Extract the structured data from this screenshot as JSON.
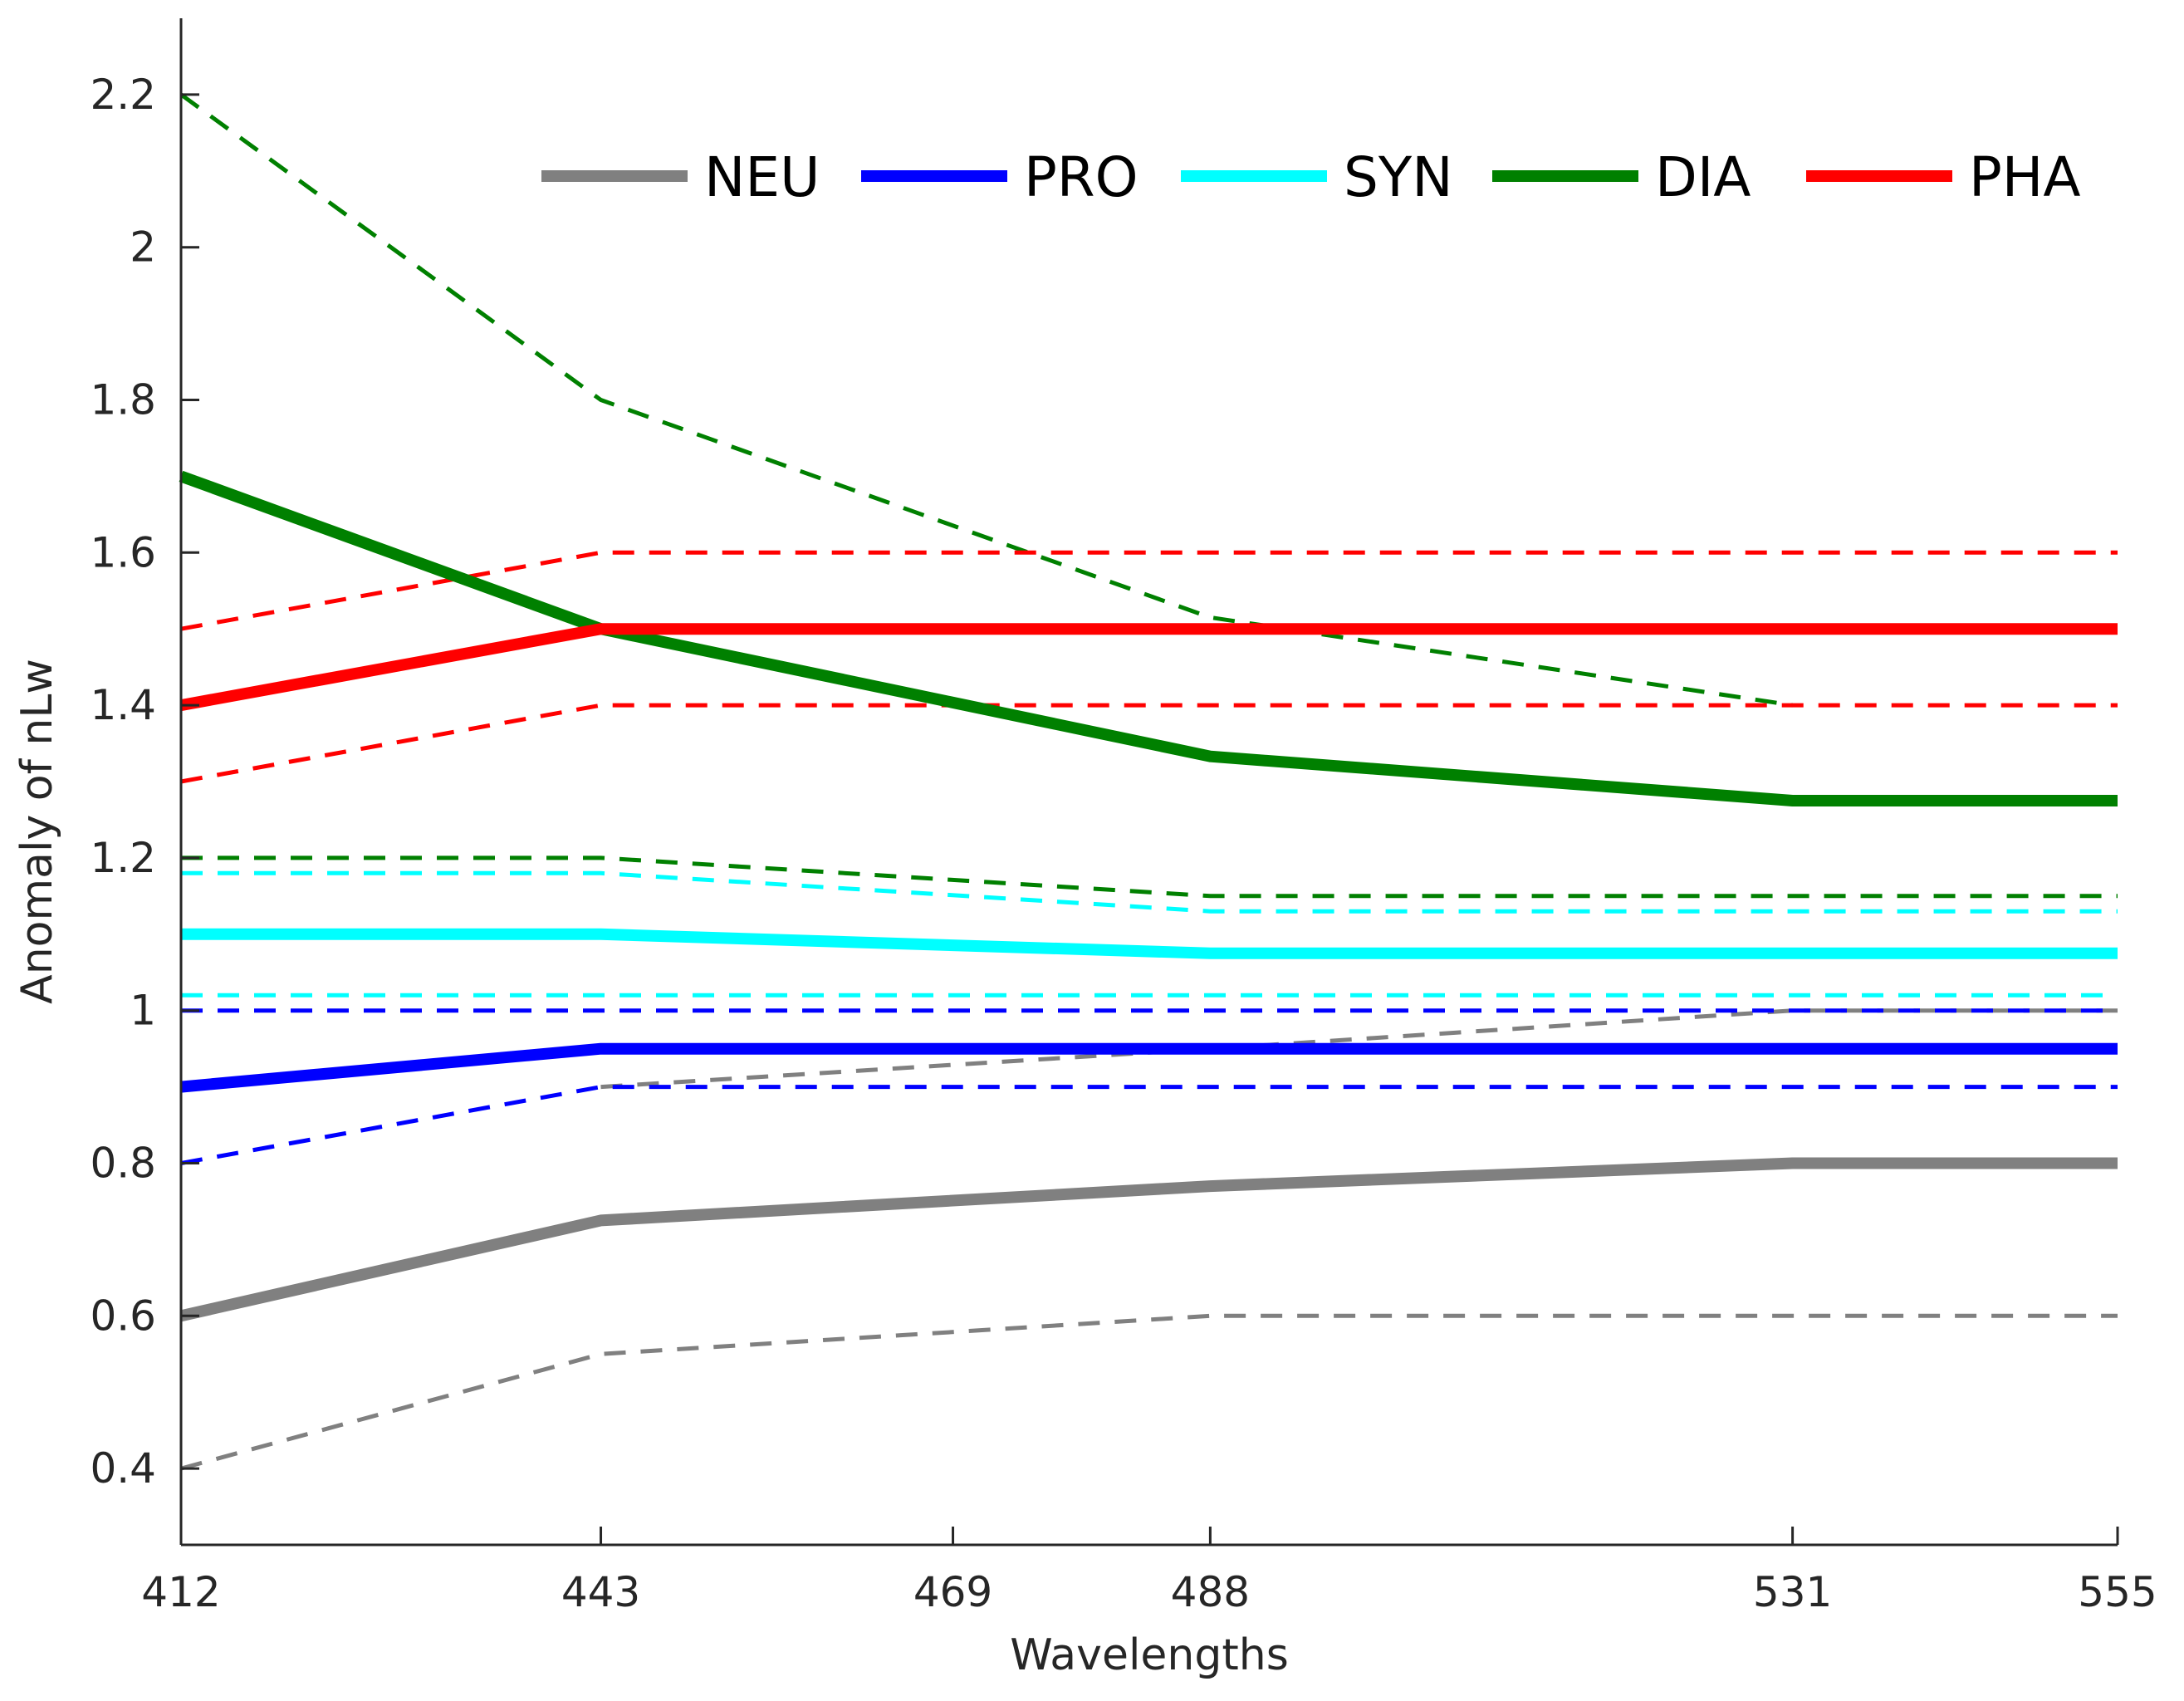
{
  "chart_data": {
    "type": "line",
    "title": "",
    "xlabel": "Wavelengths",
    "ylabel": "Anomaly of nLw",
    "x": [
      412,
      443,
      469,
      488,
      531,
      555
    ],
    "xticks": [
      "412",
      "443",
      "469",
      "488",
      "531",
      "555"
    ],
    "yticks": [
      "0.4",
      "0.6",
      "0.8",
      "1",
      "1.2",
      "1.4",
      "1.6",
      "1.8",
      "2",
      "2.2"
    ],
    "ylim": [
      0.3,
      2.3
    ],
    "xlim": [
      412,
      555
    ],
    "grid": false,
    "legend_position": "top-right",
    "series": [
      {
        "name": "NEU",
        "color": "#808080",
        "style": "solid",
        "legend": true,
        "x": [
          412,
          443,
          488,
          531,
          555
        ],
        "values": [
          0.6,
          0.725,
          0.77,
          0.8,
          0.8
        ]
      },
      {
        "name": "NEU upper",
        "color": "#808080",
        "style": "dashed",
        "legend": false,
        "x": [
          443,
          488,
          531,
          555
        ],
        "values": [
          0.9,
          0.95,
          1.0,
          1.0
        ]
      },
      {
        "name": "NEU lower",
        "color": "#808080",
        "style": "dashed",
        "legend": false,
        "x": [
          412,
          443,
          488,
          531,
          555
        ],
        "values": [
          0.4,
          0.55,
          0.6,
          0.6,
          0.6
        ]
      },
      {
        "name": "PRO",
        "color": "#0000ff",
        "style": "solid",
        "legend": true,
        "x": [
          412,
          443,
          488,
          531,
          555
        ],
        "values": [
          0.9,
          0.95,
          0.95,
          0.95,
          0.95
        ]
      },
      {
        "name": "PRO upper",
        "color": "#0000ff",
        "style": "dashed",
        "legend": false,
        "x": [
          412,
          443,
          488,
          531,
          555
        ],
        "values": [
          1.0,
          1.0,
          1.0,
          1.0,
          1.0
        ]
      },
      {
        "name": "PRO lower",
        "color": "#0000ff",
        "style": "dashed",
        "legend": false,
        "x": [
          412,
          443,
          488,
          531,
          555
        ],
        "values": [
          0.8,
          0.9,
          0.9,
          0.9,
          0.9
        ]
      },
      {
        "name": "SYN",
        "color": "#00ffff",
        "style": "solid",
        "legend": true,
        "x": [
          412,
          443,
          488,
          531,
          555
        ],
        "values": [
          1.1,
          1.1,
          1.075,
          1.075,
          1.075
        ]
      },
      {
        "name": "SYN upper",
        "color": "#00ffff",
        "style": "dashed",
        "legend": false,
        "x": [
          412,
          443,
          488,
          531,
          555
        ],
        "values": [
          1.18,
          1.18,
          1.13,
          1.13,
          1.13
        ]
      },
      {
        "name": "SYN lower",
        "color": "#00ffff",
        "style": "dashed",
        "legend": false,
        "x": [
          412,
          443,
          488,
          531,
          555
        ],
        "values": [
          1.02,
          1.02,
          1.02,
          1.02,
          1.02
        ]
      },
      {
        "name": "DIA",
        "color": "#008000",
        "style": "solid",
        "legend": true,
        "x": [
          412,
          443,
          488,
          531,
          555
        ],
        "values": [
          1.7,
          1.5,
          1.333,
          1.275,
          1.275
        ]
      },
      {
        "name": "DIA upper",
        "color": "#008000",
        "style": "dashed",
        "legend": false,
        "x": [
          412,
          443,
          488,
          531
        ],
        "values": [
          2.2,
          1.8,
          1.515,
          1.4
        ]
      },
      {
        "name": "DIA lower",
        "color": "#008000",
        "style": "dashed",
        "legend": false,
        "x": [
          412,
          443,
          488,
          531,
          555
        ],
        "values": [
          1.2,
          1.2,
          1.15,
          1.15,
          1.15
        ]
      },
      {
        "name": "PHA",
        "color": "#ff0000",
        "style": "solid",
        "legend": true,
        "x": [
          412,
          443,
          488,
          531,
          555
        ],
        "values": [
          1.4,
          1.5,
          1.5,
          1.5,
          1.5
        ]
      },
      {
        "name": "PHA upper",
        "color": "#ff0000",
        "style": "dashed",
        "legend": false,
        "x": [
          412,
          443,
          488,
          531,
          555
        ],
        "values": [
          1.5,
          1.6,
          1.6,
          1.6,
          1.6
        ]
      },
      {
        "name": "PHA lower",
        "color": "#ff0000",
        "style": "dashed",
        "legend": false,
        "x": [
          412,
          443,
          488,
          531,
          555
        ],
        "values": [
          1.3,
          1.4,
          1.4,
          1.4,
          1.4
        ]
      }
    ]
  }
}
